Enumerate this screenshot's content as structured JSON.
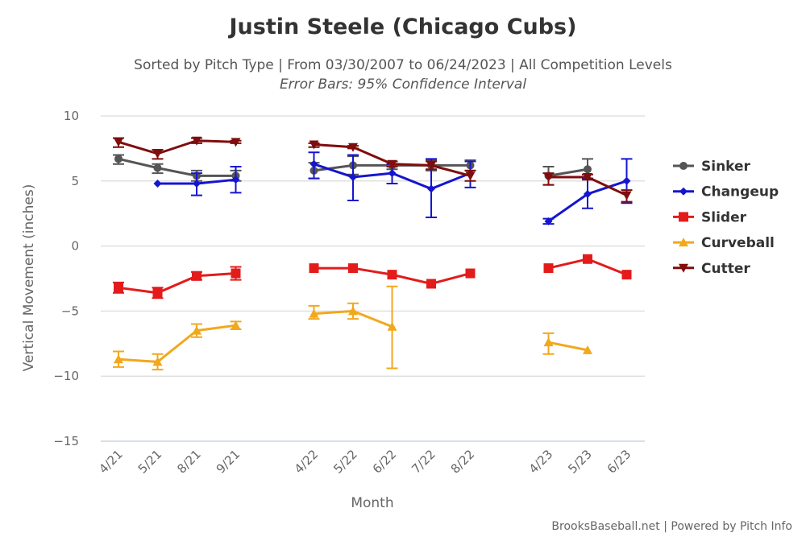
{
  "chart_data": {
    "type": "line",
    "title": "Justin Steele (Chicago Cubs)",
    "subtitle": "Sorted by Pitch Type | From 03/30/2007 to 06/24/2023 | All Competition Levels",
    "subtitle2": "Error Bars: 95% Confidence Interval",
    "xlabel": "Month",
    "ylabel": "Vertical Movement (inches)",
    "ylim": [
      -15,
      10
    ],
    "yticks": [
      "10",
      "5",
      "0",
      "−5",
      "−10",
      "−15"
    ],
    "ytick_values": [
      10,
      5,
      0,
      -5,
      -10,
      -15
    ],
    "grid": true,
    "legend": "right",
    "categories": [
      "4/21",
      "5/21",
      "8/21",
      "9/21",
      "4/22",
      "5/22",
      "6/22",
      "7/22",
      "8/22",
      "4/23",
      "5/23",
      "6/23"
    ],
    "series": [
      {
        "name": "Sinker",
        "color": "#555555",
        "marker": "circle",
        "values": [
          6.7,
          6.0,
          5.4,
          5.4,
          5.8,
          6.2,
          6.2,
          6.2,
          6.2,
          5.4,
          5.9,
          null
        ],
        "errors": [
          [
            6.3,
            7.0
          ],
          [
            5.6,
            6.3
          ],
          [
            5.0,
            5.8
          ],
          [
            5.0,
            5.8
          ],
          [
            5.2,
            6.4
          ],
          [
            5.5,
            6.9
          ],
          [
            5.9,
            6.5
          ],
          [
            5.8,
            6.6
          ],
          [
            5.8,
            6.6
          ],
          [
            4.7,
            6.1
          ],
          [
            5.1,
            6.7
          ],
          null
        ]
      },
      {
        "name": "Changeup",
        "color": "#1515d0",
        "marker": "diamond",
        "values": [
          null,
          4.8,
          4.8,
          5.1,
          6.3,
          5.3,
          5.6,
          4.4,
          5.6,
          1.9,
          4.0,
          5.0
        ],
        "errors": [
          null,
          null,
          [
            3.9,
            5.6
          ],
          [
            4.1,
            6.1
          ],
          [
            5.2,
            7.2
          ],
          [
            3.5,
            7.0
          ],
          [
            4.8,
            6.3
          ],
          [
            2.2,
            6.7
          ],
          [
            4.5,
            6.5
          ],
          [
            1.7,
            2.1
          ],
          [
            2.9,
            5.2
          ],
          [
            3.3,
            6.7
          ]
        ]
      },
      {
        "name": "Slider",
        "color": "#e41b1b",
        "marker": "square",
        "values": [
          -3.2,
          -3.6,
          -2.3,
          -2.1,
          -1.7,
          -1.7,
          -2.2,
          -2.9,
          -2.1,
          -1.7,
          -1.0,
          -2.2
        ],
        "errors": [
          [
            -3.6,
            -2.8
          ],
          [
            -4.0,
            -3.2
          ],
          [
            -2.6,
            -2.0
          ],
          [
            -2.6,
            -1.6
          ],
          null,
          null,
          null,
          null,
          null,
          null,
          null,
          null
        ]
      },
      {
        "name": "Curveball",
        "color": "#f2a81d",
        "marker": "triangle",
        "values": [
          -8.7,
          -8.9,
          -6.5,
          -6.1,
          -5.2,
          -5.0,
          -6.2,
          null,
          null,
          -7.4,
          -8.0,
          null
        ],
        "errors": [
          [
            -9.3,
            -8.1
          ],
          [
            -9.5,
            -8.3
          ],
          [
            -7.0,
            -6.0
          ],
          [
            -6.4,
            -5.8
          ],
          [
            -5.6,
            -4.6
          ],
          [
            -5.6,
            -4.4
          ],
          [
            -9.4,
            -3.1
          ],
          null,
          null,
          [
            -8.3,
            -6.7
          ],
          null,
          null
        ]
      },
      {
        "name": "Cutter",
        "color": "#7f0d0d",
        "marker": "triangle-down",
        "values": [
          8.0,
          7.1,
          8.1,
          8.0,
          7.8,
          7.6,
          6.3,
          6.2,
          5.4,
          5.3,
          5.3,
          3.9
        ],
        "errors": [
          [
            7.6,
            8.3
          ],
          [
            6.7,
            7.4
          ],
          [
            7.9,
            8.3
          ],
          [
            7.9,
            8.1
          ],
          [
            7.6,
            7.9
          ],
          [
            7.5,
            7.7
          ],
          [
            6.1,
            6.5
          ],
          [
            5.9,
            6.5
          ],
          [
            5.0,
            5.8
          ],
          [
            4.7,
            5.6
          ],
          [
            5.1,
            5.5
          ],
          [
            3.4,
            4.3
          ]
        ]
      }
    ]
  },
  "credit": "BrooksBaseball.net | Powered by Pitch Info"
}
